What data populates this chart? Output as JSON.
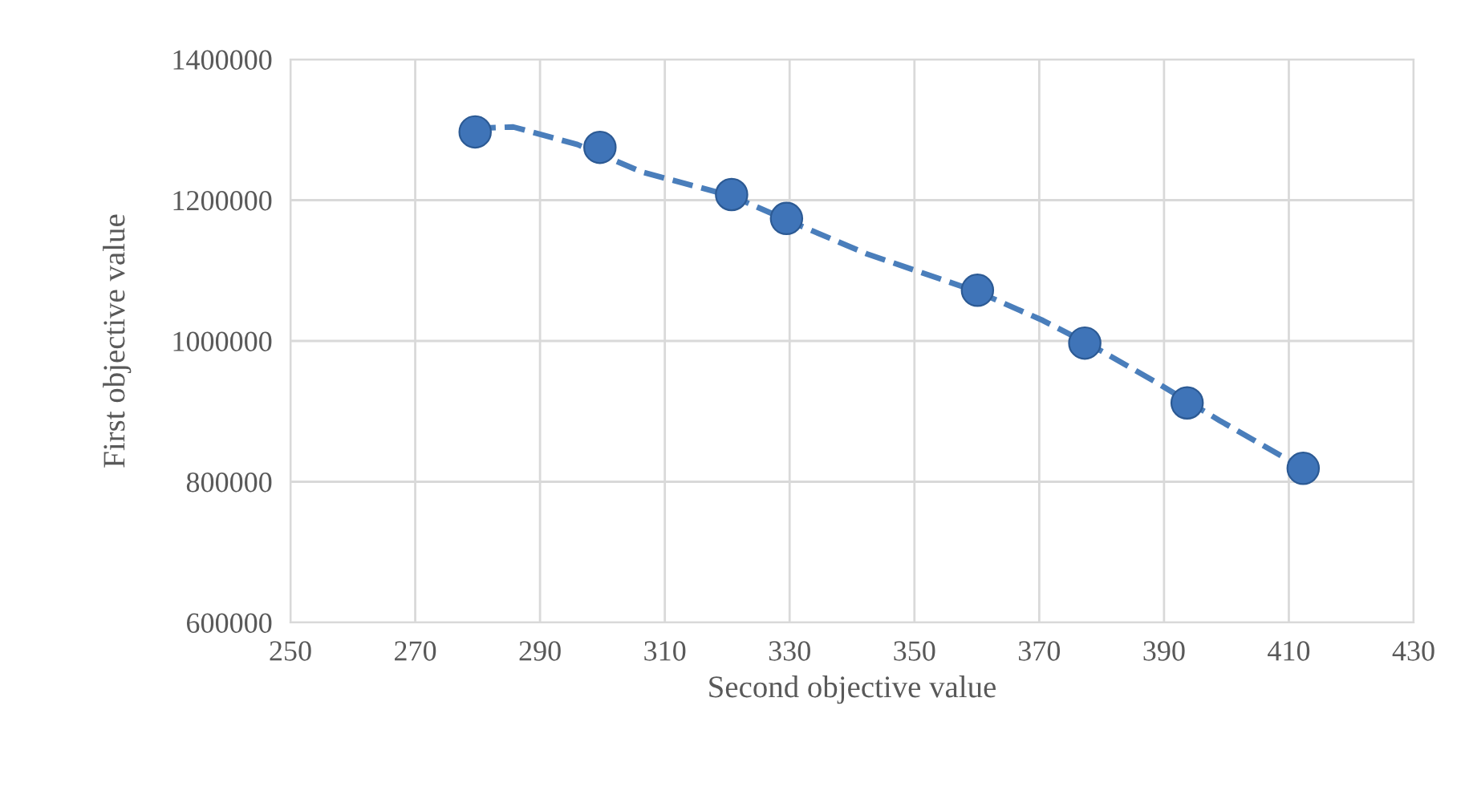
{
  "chart_data": {
    "type": "scatter",
    "xlabel": "Second objective value",
    "ylabel": "First objective value",
    "xlim": [
      250,
      430
    ],
    "xticks": [
      250,
      270,
      290,
      310,
      330,
      350,
      370,
      390,
      410,
      430
    ],
    "ylim": [
      600000,
      1400000
    ],
    "yticks": [
      600000,
      800000,
      1000000,
      1200000,
      1400000
    ],
    "grid": true,
    "marker": "circle",
    "series": [
      {
        "type": "line",
        "marker": "none",
        "line_style": "dashed",
        "color": "#4a7ebb",
        "x": [
          279.6,
          285.7,
          296.0,
          306.3,
          320.7,
          329.5,
          342.3,
          360.1,
          370.6,
          378.3,
          388.6,
          398.9,
          412.3
        ],
        "values": [
          1302000,
          1304000,
          1279000,
          1240000,
          1206000,
          1172000,
          1124000,
          1070000,
          1029000,
          994000,
          942000,
          887000,
          819000
        ]
      },
      {
        "color": "#3f74b8",
        "x": [
          279.6,
          299.6,
          320.7,
          329.5,
          360.1,
          377.3,
          393.7,
          412.3
        ],
        "values": [
          1297000,
          1275000,
          1208000,
          1174000,
          1072000,
          997000,
          912000,
          819000
        ]
      }
    ]
  }
}
